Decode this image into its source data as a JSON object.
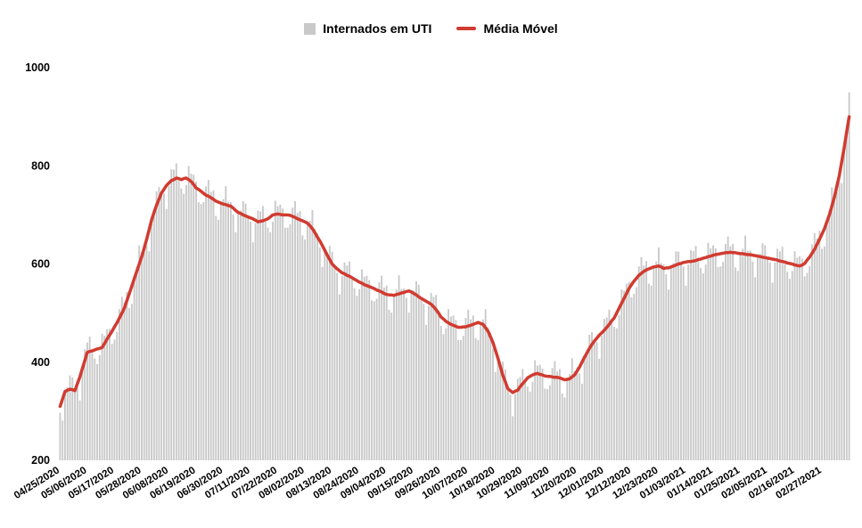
{
  "colors": {
    "bar": "#c9c9c9",
    "line": "#d13b30",
    "text": "#000000",
    "background": "#ffffff"
  },
  "axes": {
    "y_ticks": [
      200,
      400,
      600,
      800,
      1000
    ]
  },
  "chart_data": {
    "type": "bar",
    "title": "",
    "xlabel": "",
    "ylabel": "",
    "ylim": [
      200,
      1000
    ],
    "grid": false,
    "legend_position": "top-center",
    "x_tick_step": 11,
    "x_tick_labels": [
      "04/25/2020",
      "05/06/2020",
      "05/17/2020",
      "05/28/2020",
      "06/08/2020",
      "06/19/2020",
      "06/30/2020",
      "07/11/2020",
      "07/22/2020",
      "08/02/2020",
      "08/13/2020",
      "08/24/2020",
      "09/04/2020",
      "09/15/2020",
      "09/26/2020",
      "10/07/2020",
      "10/18/2020",
      "10/29/2020",
      "11/09/2020",
      "11/20/2020",
      "12/01/2020",
      "12/12/2020",
      "12/23/2020",
      "01/03/2021",
      "01/14/2021",
      "01/25/2021",
      "02/05/2021",
      "02/16/2021",
      "02/27/2021"
    ],
    "series": [
      {
        "name": "Internados em UTI",
        "type": "bar",
        "color": "#c9c9c9",
        "values": [
          297,
          281,
          344,
          349,
          373,
          369,
          342,
          348,
          322,
          381,
          426,
          440,
          452,
          419,
          407,
          396,
          414,
          458,
          454,
          467,
          468,
          437,
          446,
          462,
          508,
          533,
          522,
          543,
          510,
          519,
          569,
          595,
          638,
          623,
          640,
          637,
          626,
          694,
          711,
          748,
          757,
          745,
          744,
          712,
          759,
          793,
          792,
          805,
          770,
          754,
          743,
          761,
          800,
          784,
          782,
          768,
          726,
          722,
          726,
          758,
          771,
          747,
          750,
          698,
          690,
          723,
          732,
          759,
          727,
          726,
          701,
          665,
          709,
          709,
          728,
          723,
          696,
          686,
          644,
          683,
          709,
          707,
          718,
          686,
          674,
          665,
          686,
          729,
          718,
          721,
          713,
          674,
          674,
          681,
          715,
          728,
          704,
          708,
          658,
          650,
          682,
          688,
          710,
          672,
          663,
          634,
          594,
          632,
          624,
          637,
          625,
          595,
          582,
          538,
          576,
          603,
          597,
          605,
          568,
          551,
          535,
          549,
          589,
          574,
          576,
          567,
          526,
          524,
          529,
          563,
          576,
          552,
          556,
          507,
          501,
          535,
          548,
          577,
          549,
          550,
          531,
          501,
          547,
          546,
          565,
          558,
          530,
          519,
          476,
          515,
          541,
          533,
          537,
          496,
          474,
          457,
          469,
          508,
          493,
          495,
          486,
          445,
          445,
          454,
          490,
          507,
          487,
          495,
          449,
          445,
          478,
          487,
          508,
          471,
          460,
          427,
          380,
          412,
          397,
          401,
          385,
          346,
          334,
          290,
          335,
          366,
          370,
          386,
          358,
          350,
          340,
          360,
          404,
          393,
          395,
          387,
          346,
          345,
          353,
          388,
          402,
          381,
          386,
          336,
          328,
          364,
          376,
          408,
          382,
          390,
          377,
          356,
          414,
          425,
          456,
          461,
          443,
          441,
          407,
          454,
          488,
          491,
          507,
          480,
          472,
          469,
          496,
          548,
          546,
          560,
          563,
          532,
          539,
          553,
          595,
          614,
          597,
          606,
          560,
          556,
          593,
          605,
          634,
          602,
          599,
          579,
          548,
          598,
          602,
          626,
          625,
          601,
          595,
          556,
          599,
          628,
          626,
          637,
          605,
          592,
          581,
          599,
          643,
          632,
          638,
          632,
          594,
          595,
          604,
          641,
          656,
          636,
          641,
          593,
          586,
          620,
          631,
          658,
          627,
          627,
          605,
          573,
          620,
          621,
          642,
          638,
          612,
          603,
          562,
          603,
          631,
          626,
          635,
          600,
          584,
          570,
          586,
          626,
          613,
          616,
          611,
          575,
          582,
          596,
          640,
          663,
          652,
          668,
          631,
          636,
          685,
          710,
          756,
          744,
          766,
          767,
          765,
          842,
          875,
          950
        ]
      },
      {
        "name": "Média Móvel",
        "type": "line",
        "color": "#d13b30",
        "values": [
          310,
          325,
          340,
          343,
          345,
          344,
          342,
          356,
          370,
          387,
          403,
          420,
          422,
          423,
          425,
          427,
          428,
          430,
          438,
          447,
          455,
          463,
          472,
          480,
          490,
          500,
          510,
          525,
          540,
          555,
          570,
          585,
          600,
          615,
          632,
          650,
          670,
          690,
          705,
          720,
          732,
          745,
          752,
          760,
          765,
          770,
          772,
          775,
          774,
          772,
          774,
          775,
          772,
          768,
          762,
          755,
          752,
          748,
          744,
          740,
          738,
          735,
          732,
          728,
          726,
          724,
          722,
          721,
          719,
          718,
          714,
          709,
          705,
          703,
          700,
          698,
          696,
          694,
          692,
          689,
          686,
          687,
          688,
          690,
          692,
          696,
          700,
          701,
          702,
          701,
          700,
          700,
          700,
          699,
          697,
          695,
          692,
          690,
          688,
          686,
          683,
          678,
          672,
          664,
          655,
          647,
          638,
          628,
          618,
          609,
          600,
          595,
          590,
          586,
          582,
          580,
          577,
          575,
          572,
          569,
          566,
          563,
          561,
          558,
          556,
          554,
          552,
          550,
          547,
          545,
          543,
          540,
          538,
          537,
          537,
          536,
          538,
          539,
          541,
          542,
          544,
          545,
          543,
          540,
          537,
          533,
          530,
          527,
          524,
          521,
          518,
          513,
          507,
          500,
          492,
          488,
          483,
          480,
          477,
          475,
          473,
          471,
          471,
          472,
          472,
          474,
          475,
          477,
          479,
          481,
          479,
          477,
          470,
          463,
          452,
          440,
          424,
          408,
          391,
          373,
          360,
          346,
          342,
          338,
          341,
          343,
          350,
          356,
          362,
          368,
          371,
          374,
          376,
          377,
          375,
          374,
          372,
          371,
          371,
          370,
          369,
          369,
          368,
          366,
          364,
          365,
          366,
          370,
          374,
          382,
          390,
          400,
          410,
          419,
          428,
          436,
          443,
          449,
          455,
          460,
          465,
          471,
          477,
          484,
          490,
          500,
          510,
          520,
          530,
          540,
          550,
          558,
          565,
          571,
          577,
          581,
          585,
          588,
          590,
          592,
          594,
          595,
          596,
          594,
          591,
          592,
          592,
          594,
          596,
          598,
          600,
          601,
          603,
          604,
          605,
          605,
          606,
          607,
          609,
          610,
          612,
          613,
          615,
          616,
          618,
          619,
          620,
          621,
          622,
          623,
          623,
          624,
          623,
          623,
          622,
          621,
          621,
          620,
          619,
          619,
          618,
          617,
          616,
          615,
          614,
          613,
          612,
          611,
          610,
          609,
          608,
          606,
          605,
          604,
          602,
          601,
          600,
          598,
          597,
          596,
          598,
          601,
          608,
          614,
          622,
          630,
          640,
          650,
          661,
          672,
          686,
          700,
          718,
          736,
          758,
          780,
          809,
          838,
          869,
          900
        ]
      }
    ]
  }
}
